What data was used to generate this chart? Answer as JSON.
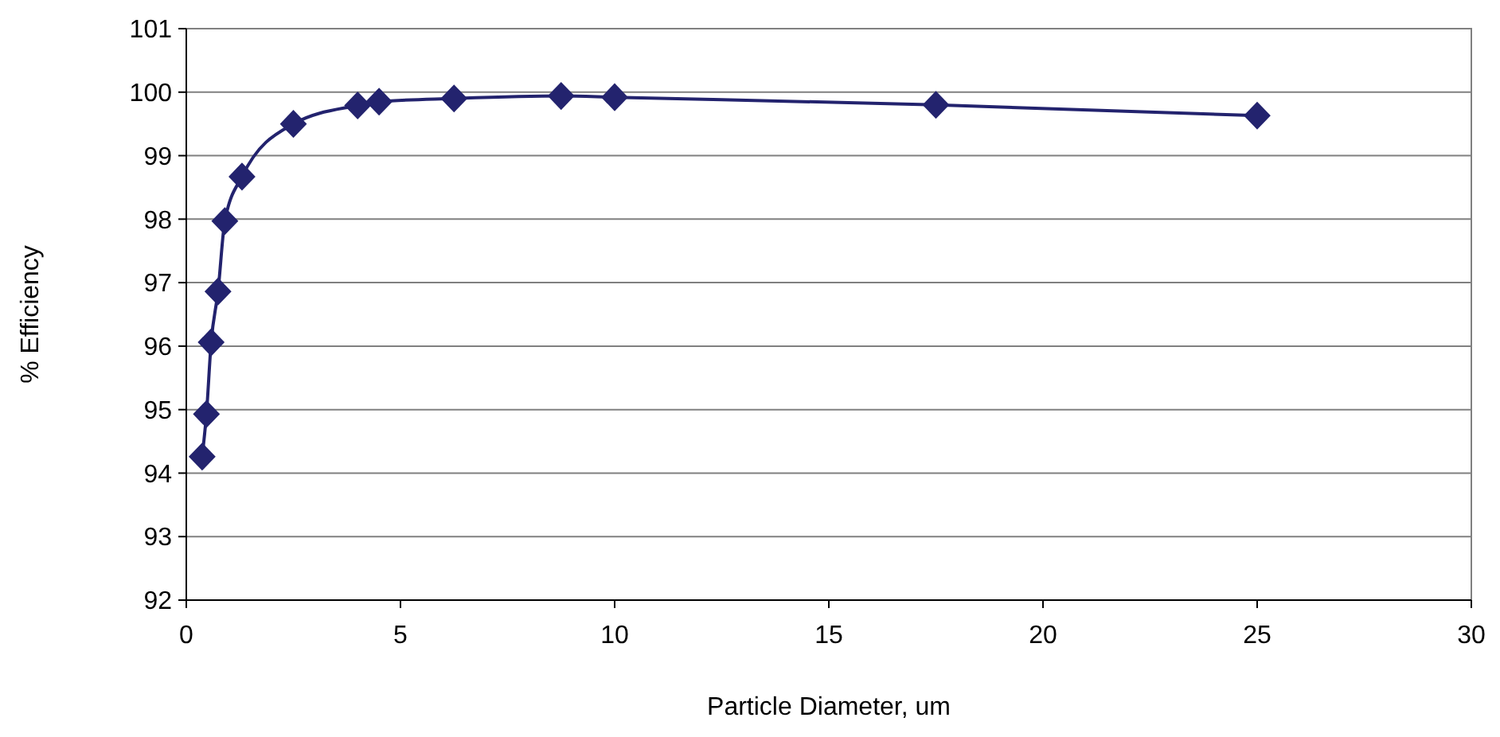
{
  "chart_data": {
    "type": "line",
    "xlabel": "Particle Diameter, um",
    "ylabel": "% Efficiency",
    "x": [
      0.37,
      0.47,
      0.58,
      0.74,
      0.9,
      1.3,
      2.5,
      4,
      4.5,
      6.25,
      8.75,
      10,
      17.5,
      25
    ],
    "series": [
      {
        "color": "#23236e",
        "values": [
          94.26,
          94.93,
          96.06,
          96.86,
          97.97,
          98.67,
          99.5,
          99.79,
          99.85,
          99.9,
          99.94,
          99.92,
          99.8,
          99.63
        ]
      }
    ],
    "xlim": [
      0,
      30
    ],
    "xticks": [
      0,
      5,
      10,
      15,
      20,
      25,
      30
    ],
    "ylim": [
      92,
      101
    ],
    "yticks": [
      92,
      93,
      94,
      95,
      96,
      97,
      98,
      99,
      100,
      101
    ],
    "grid": "y",
    "marker": "diamond",
    "line_style": "solid"
  }
}
